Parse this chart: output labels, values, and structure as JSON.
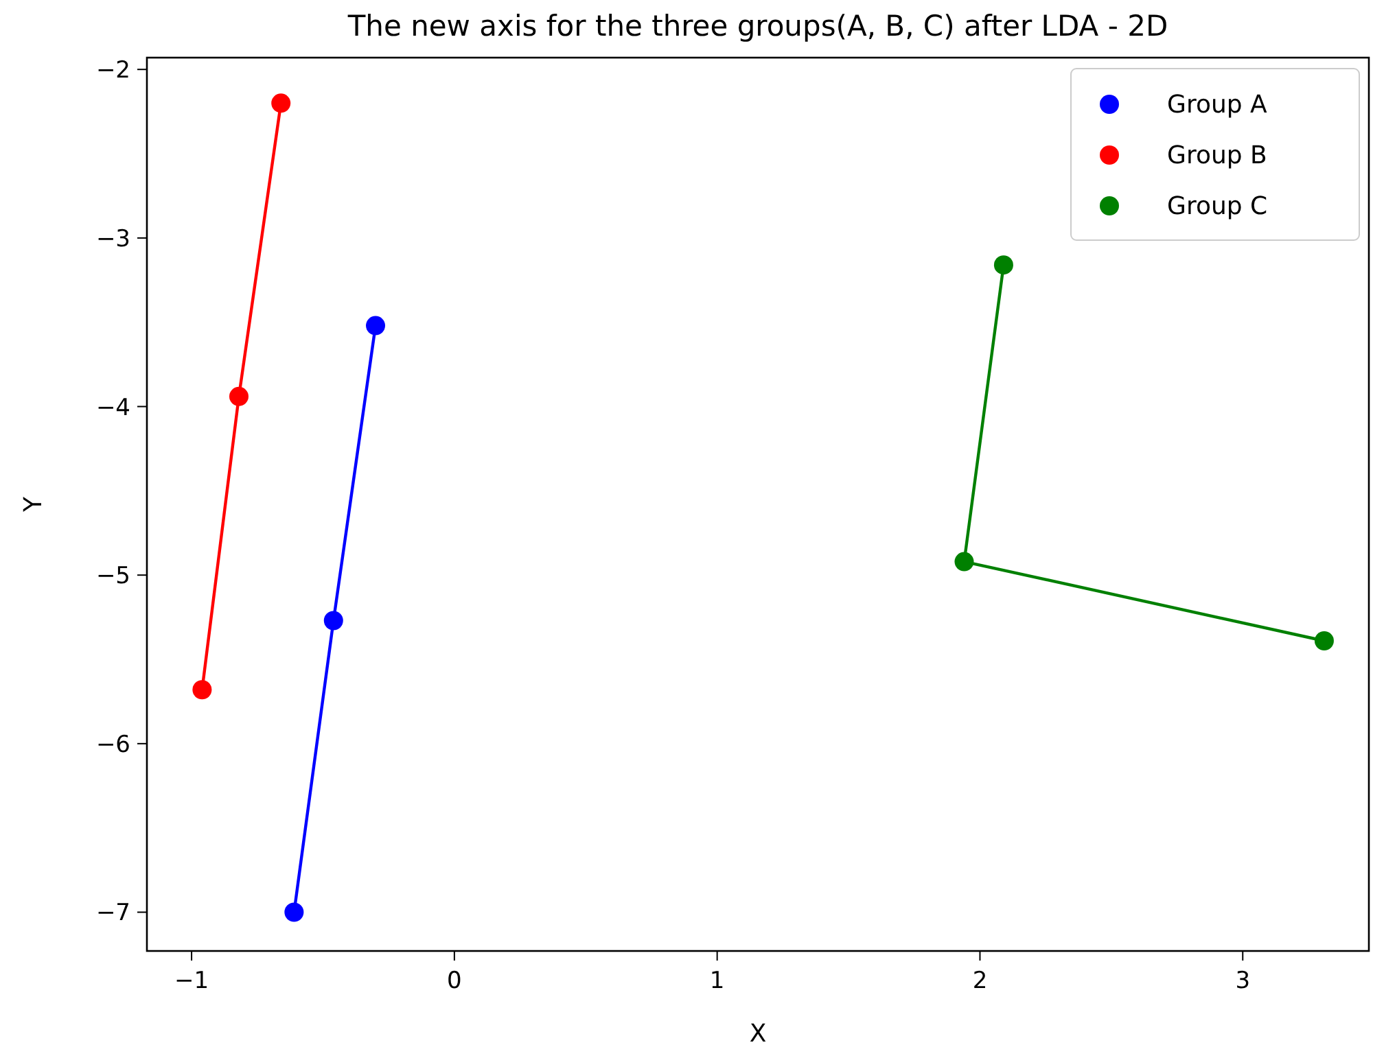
{
  "chart_data": {
    "type": "line",
    "title": "The new axis for the three groups(A, B, C) after LDA - 2D",
    "xlabel": "X",
    "ylabel": "Y",
    "xlim": [
      -1.17,
      3.48
    ],
    "ylim": [
      -7.23,
      -1.93
    ],
    "xticks": [
      -1,
      0,
      1,
      2,
      3
    ],
    "yticks": [
      -7,
      -6,
      -5,
      -4,
      -3,
      -2
    ],
    "marker": "circle",
    "legend": "top right",
    "grid": false,
    "series": [
      {
        "name": "Group A",
        "color": "#0000ff",
        "x": [
          -0.3,
          -0.46,
          -0.61
        ],
        "values": [
          -3.52,
          -5.27,
          -7.0
        ]
      },
      {
        "name": "Group B",
        "color": "#ff0000",
        "x": [
          -0.66,
          -0.82,
          -0.96
        ],
        "values": [
          -2.2,
          -3.94,
          -5.68
        ]
      },
      {
        "name": "Group C",
        "color": "#008000",
        "x": [
          2.09,
          1.94,
          3.31
        ],
        "values": [
          -3.16,
          -4.92,
          -5.39
        ]
      }
    ]
  }
}
